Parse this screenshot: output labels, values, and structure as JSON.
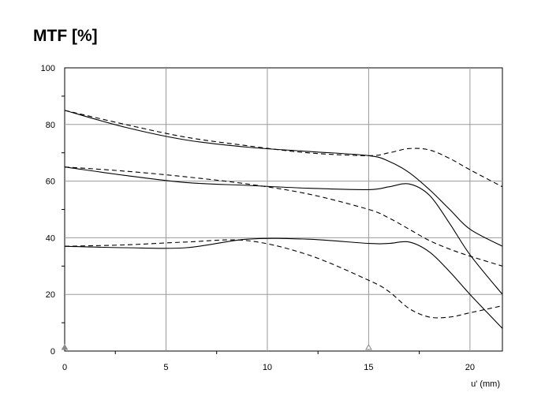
{
  "chart_data": {
    "type": "line",
    "title": "MTF [%]",
    "xlabel": "u' (mm)",
    "ylabel": "",
    "xlim": [
      0,
      21.6
    ],
    "ylim": [
      0,
      100
    ],
    "x_ticks": [
      0,
      5,
      10,
      15,
      20
    ],
    "y_ticks": [
      0,
      20,
      40,
      60,
      80,
      100
    ],
    "grid": true,
    "legend": "none",
    "markers_x": [
      0,
      15
    ],
    "series": [
      {
        "style": "solid",
        "points": [
          [
            0,
            85
          ],
          [
            3,
            79
          ],
          [
            6,
            74.5
          ],
          [
            9,
            72
          ],
          [
            12,
            70.5
          ],
          [
            15,
            69
          ],
          [
            16,
            67
          ],
          [
            17,
            63
          ],
          [
            18,
            57
          ],
          [
            19,
            50
          ],
          [
            20,
            43
          ],
          [
            21.6,
            37
          ]
        ]
      },
      {
        "style": "dashed",
        "points": [
          [
            0,
            85
          ],
          [
            3,
            80
          ],
          [
            6,
            75.5
          ],
          [
            9,
            72.5
          ],
          [
            12,
            70
          ],
          [
            15,
            69
          ],
          [
            16,
            70
          ],
          [
            17,
            71.5
          ],
          [
            18,
            71
          ],
          [
            19,
            68
          ],
          [
            20,
            64
          ],
          [
            21.6,
            58
          ]
        ]
      },
      {
        "style": "solid",
        "points": [
          [
            0,
            65
          ],
          [
            3,
            62
          ],
          [
            6,
            59.5
          ],
          [
            9,
            58.5
          ],
          [
            12,
            57.5
          ],
          [
            15,
            57
          ],
          [
            16,
            58
          ],
          [
            17,
            59
          ],
          [
            18,
            55
          ],
          [
            19,
            45
          ],
          [
            20,
            34
          ],
          [
            21.6,
            20
          ]
        ]
      },
      {
        "style": "dashed",
        "points": [
          [
            0,
            65
          ],
          [
            3,
            63.5
          ],
          [
            6,
            61.5
          ],
          [
            9,
            59
          ],
          [
            12,
            55.5
          ],
          [
            15,
            50
          ],
          [
            16,
            47
          ],
          [
            17,
            43
          ],
          [
            18,
            39
          ],
          [
            19,
            36
          ],
          [
            20,
            33.5
          ],
          [
            21.6,
            30
          ]
        ]
      },
      {
        "style": "solid",
        "points": [
          [
            0,
            37
          ],
          [
            3,
            36.5
          ],
          [
            6,
            36.5
          ],
          [
            9,
            39.5
          ],
          [
            12,
            39.5
          ],
          [
            15,
            38
          ],
          [
            16,
            38
          ],
          [
            17,
            38.5
          ],
          [
            18,
            35
          ],
          [
            19,
            28
          ],
          [
            20,
            20
          ],
          [
            21.6,
            8
          ]
        ]
      },
      {
        "style": "dashed",
        "points": [
          [
            0,
            37
          ],
          [
            3,
            37.5
          ],
          [
            6,
            38.5
          ],
          [
            9,
            39
          ],
          [
            12,
            34
          ],
          [
            15,
            25
          ],
          [
            16,
            21
          ],
          [
            17,
            15
          ],
          [
            18,
            12
          ],
          [
            19,
            12
          ],
          [
            20,
            13.5
          ],
          [
            21.6,
            16
          ]
        ]
      }
    ]
  }
}
